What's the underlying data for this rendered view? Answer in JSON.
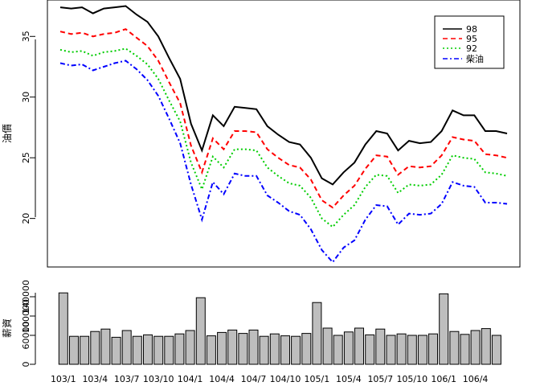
{
  "chart_data": [
    {
      "type": "line",
      "ylabel": "油價",
      "ylim": [
        16,
        38
      ],
      "yticks": [
        20,
        25,
        30,
        35
      ],
      "legend_position": "top-right",
      "series": [
        {
          "name": "98",
          "color": "#000000",
          "dash": "solid",
          "values": [
            37.4,
            37.3,
            37.4,
            36.9,
            37.3,
            37.4,
            37.5,
            36.8,
            36.2,
            35.0,
            33.2,
            31.5,
            27.8,
            25.6,
            28.5,
            27.6,
            29.2,
            29.1,
            29.0,
            27.6,
            26.9,
            26.3,
            26.1,
            25.0,
            23.3,
            22.8,
            23.8,
            24.6,
            26.1,
            27.2,
            27.0,
            25.6,
            26.4,
            26.2,
            26.3,
            27.2,
            28.9,
            28.5,
            28.5,
            27.2,
            27.2,
            27.0
          ]
        },
        {
          "name": "95",
          "color": "#ff0000",
          "dash": "dashed",
          "values": [
            35.4,
            35.2,
            35.3,
            35.0,
            35.2,
            35.3,
            35.6,
            34.9,
            34.2,
            33.0,
            31.2,
            29.5,
            26.0,
            23.8,
            26.6,
            25.7,
            27.2,
            27.2,
            27.1,
            25.7,
            25.0,
            24.4,
            24.2,
            23.2,
            21.5,
            20.9,
            21.9,
            22.7,
            24.1,
            25.2,
            25.1,
            23.6,
            24.3,
            24.2,
            24.3,
            25.2,
            26.7,
            26.5,
            26.4,
            25.3,
            25.2,
            25.0
          ]
        },
        {
          "name": "92",
          "color": "#00cd00",
          "dash": "dotted",
          "values": [
            33.9,
            33.7,
            33.8,
            33.4,
            33.7,
            33.8,
            34.0,
            33.4,
            32.7,
            31.5,
            29.7,
            28.0,
            24.6,
            22.4,
            25.1,
            24.2,
            25.7,
            25.7,
            25.6,
            24.2,
            23.5,
            22.9,
            22.7,
            21.7,
            20.0,
            19.3,
            20.3,
            21.1,
            22.6,
            23.6,
            23.5,
            22.1,
            22.8,
            22.7,
            22.8,
            23.6,
            25.2,
            25.0,
            24.9,
            23.8,
            23.7,
            23.5
          ]
        },
        {
          "name": "柴油",
          "color": "#0000ff",
          "dash": "dotdash",
          "values": [
            32.8,
            32.6,
            32.7,
            32.2,
            32.5,
            32.8,
            33.0,
            32.3,
            31.4,
            30.1,
            28.2,
            26.2,
            22.8,
            19.9,
            23.0,
            22.0,
            23.7,
            23.5,
            23.5,
            21.9,
            21.3,
            20.6,
            20.3,
            19.1,
            17.4,
            16.4,
            17.6,
            18.2,
            19.9,
            21.1,
            21.0,
            19.5,
            20.4,
            20.3,
            20.4,
            21.2,
            23.0,
            22.7,
            22.6,
            21.3,
            21.3,
            21.2
          ]
        }
      ]
    },
    {
      "type": "bar",
      "ylabel": "薪資",
      "ylim": [
        0,
        160000
      ],
      "yticks": [
        0,
        60000,
        100000,
        140000
      ],
      "categories": [
        "103/1",
        "103/2",
        "103/3",
        "103/4",
        "103/5",
        "103/6",
        "103/7",
        "103/8",
        "103/9",
        "103/10",
        "103/11",
        "103/12",
        "104/1",
        "104/2",
        "104/3",
        "104/4",
        "104/5",
        "104/6",
        "104/7",
        "104/8",
        "104/9",
        "104/10",
        "104/11",
        "104/12",
        "105/1",
        "105/2",
        "105/3",
        "105/4",
        "105/5",
        "105/6",
        "105/7",
        "105/8",
        "105/9",
        "105/10",
        "105/11",
        "105/12",
        "106/1",
        "106/2",
        "106/3",
        "106/4",
        "106/5",
        "106/6"
      ],
      "xtick_labels": [
        "103/1",
        "103/4",
        "103/7",
        "103/10",
        "104/1",
        "104/4",
        "104/7",
        "104/10",
        "105/1",
        "105/4",
        "105/7",
        "105/10",
        "106/1",
        "106/4"
      ],
      "xtick_index": [
        0,
        3,
        6,
        9,
        12,
        15,
        18,
        21,
        24,
        27,
        30,
        33,
        36,
        39
      ],
      "bar_color": "#bebebe",
      "values": [
        148000,
        58000,
        58000,
        68000,
        73000,
        56000,
        70000,
        58000,
        61000,
        58000,
        58000,
        63000,
        70000,
        138000,
        59000,
        66000,
        71000,
        64000,
        71000,
        58000,
        63000,
        59000,
        58000,
        64000,
        128000,
        75000,
        60000,
        67000,
        75000,
        61000,
        73000,
        60000,
        63000,
        60000,
        60000,
        63000,
        146000,
        68000,
        62000,
        70000,
        74000,
        60000
      ]
    }
  ]
}
